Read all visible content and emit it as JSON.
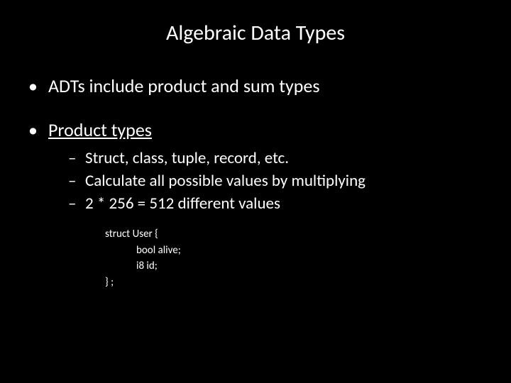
{
  "slide": {
    "background_color": "#000000",
    "text_color": "#ffffff",
    "title": "Algebraic Data Types",
    "title_fontsize": 30,
    "bullets": [
      {
        "text": "ADTs include product and sum types",
        "fontsize": 26
      },
      {
        "text": "Product types",
        "fontsize": 26,
        "underline": true,
        "sub": [
          {
            "text": "Struct, class, tuple, record, etc.",
            "fontsize": 23
          },
          {
            "text": "Calculate all possible values by multiplying",
            "fontsize": 23
          },
          {
            "text": "2 * 256 = 512 different values",
            "fontsize": 23
          }
        ],
        "code": {
          "fontsize": 15,
          "lines": [
            {
              "text": "struct  User {",
              "indent": 0
            },
            {
              "text": "bool alive;",
              "indent": 1
            },
            {
              "text": "i8 id;",
              "indent": 1
            },
            {
              "text": "} ;",
              "indent": 0
            }
          ]
        }
      }
    ]
  }
}
